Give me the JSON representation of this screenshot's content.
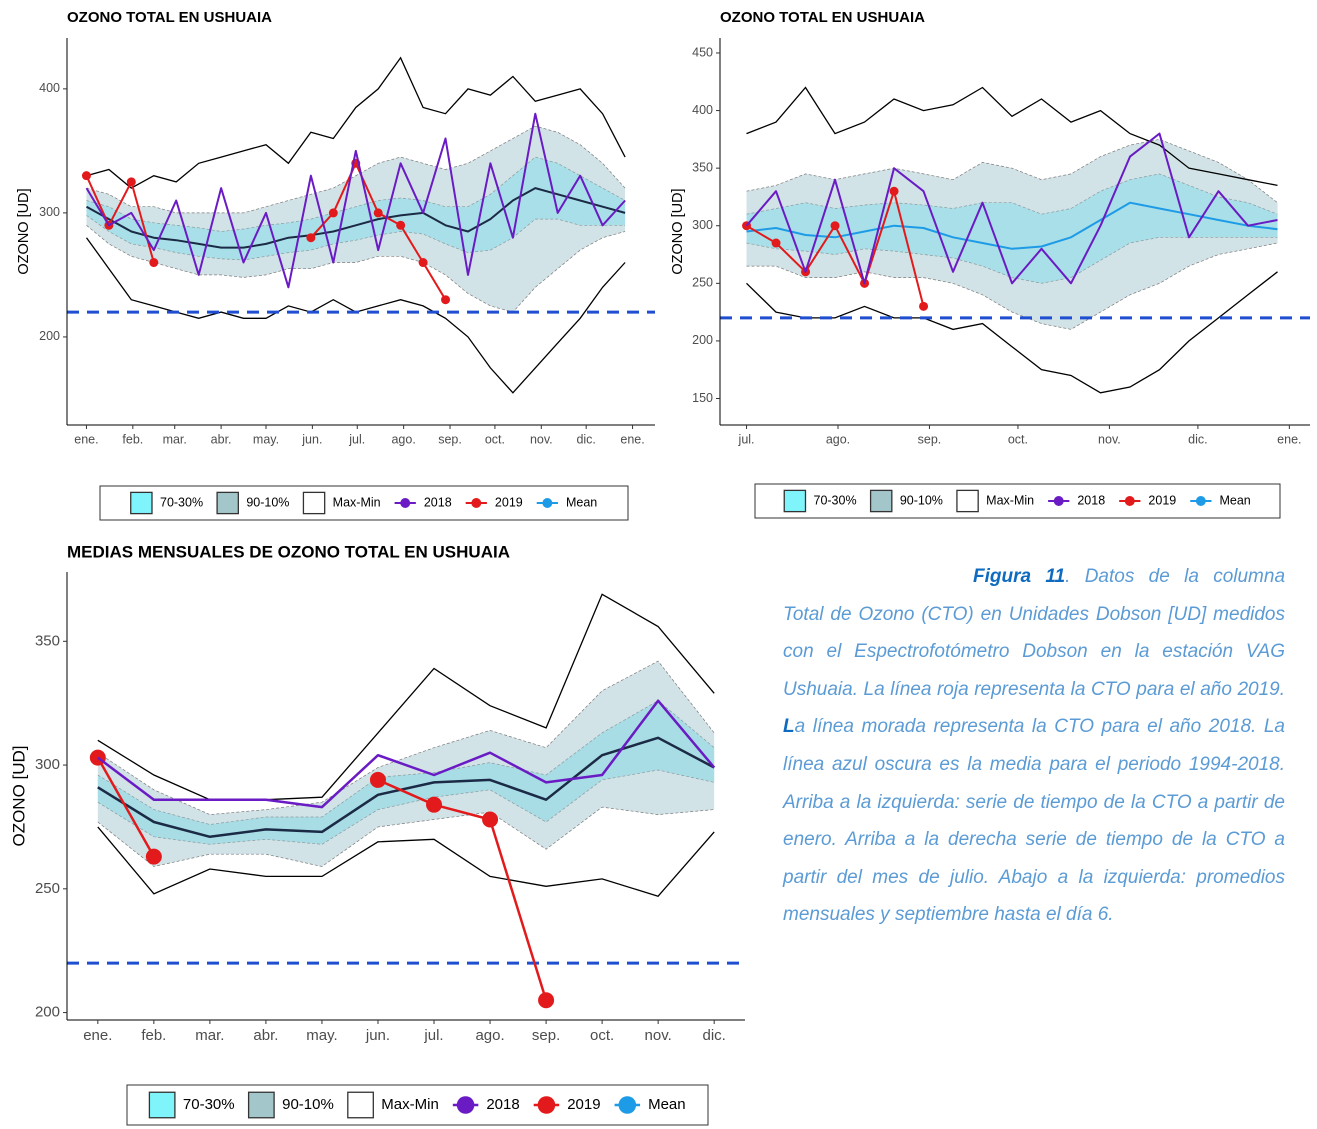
{
  "chart_data": [
    {
      "type": "line",
      "title": "OZONO TOTAL EN USHUAIA",
      "ylabel": "OZONO [UD]",
      "x": [
        0,
        15,
        30,
        45,
        60,
        75,
        90,
        105,
        120,
        135,
        150,
        165,
        180,
        195,
        210,
        225,
        240,
        255,
        270,
        285,
        300,
        315,
        330,
        345,
        360
      ],
      "xlim": [
        -13,
        380
      ],
      "xticks": [
        {
          "value": 0,
          "label": "ene."
        },
        {
          "value": 31,
          "label": "feb."
        },
        {
          "value": 59,
          "label": "mar."
        },
        {
          "value": 90,
          "label": "abr."
        },
        {
          "value": 120,
          "label": "may."
        },
        {
          "value": 151,
          "label": "jun."
        },
        {
          "value": 181,
          "label": "jul."
        },
        {
          "value": 212,
          "label": "ago."
        },
        {
          "value": 243,
          "label": "sep."
        },
        {
          "value": 273,
          "label": "oct."
        },
        {
          "value": 304,
          "label": "nov."
        },
        {
          "value": 334,
          "label": "dic."
        },
        {
          "value": 365,
          "label": "ene."
        }
      ],
      "ylim": [
        129,
        441
      ],
      "yticks": [
        200,
        300,
        400
      ],
      "threshold": 220,
      "threshold_color": "#1f4fd0",
      "bands": [
        {
          "name": "70-30%",
          "color": "#a9dfe8",
          "legend_color": "#80f4fb",
          "edge_color": "#8a9a9c",
          "upper": [
            310,
            305,
            295,
            292,
            290,
            288,
            285,
            287,
            290,
            292,
            295,
            300,
            305,
            310,
            312,
            310,
            305,
            305,
            315,
            330,
            345,
            340,
            330,
            320,
            310
          ],
          "lower": [
            298,
            285,
            275,
            272,
            268,
            265,
            263,
            262,
            265,
            268,
            270,
            275,
            278,
            282,
            285,
            283,
            275,
            268,
            270,
            280,
            295,
            295,
            290,
            290,
            290
          ]
        },
        {
          "name": "90-10%",
          "color": "#d2e3e8",
          "legend_color": "#a3c6ca",
          "edge_color": "#7a7a7a",
          "upper": [
            320,
            315,
            305,
            305,
            300,
            300,
            300,
            300,
            305,
            310,
            315,
            320,
            330,
            340,
            345,
            340,
            335,
            340,
            350,
            360,
            370,
            365,
            355,
            340,
            320
          ],
          "lower": [
            290,
            275,
            265,
            260,
            255,
            250,
            250,
            248,
            250,
            255,
            255,
            260,
            260,
            265,
            265,
            260,
            250,
            235,
            225,
            220,
            240,
            255,
            270,
            280,
            285
          ]
        },
        {
          "name": "Max-Min",
          "color": "none",
          "legend_color": "#ffffff",
          "edge_color": "#000000",
          "upper": [
            330,
            335,
            320,
            330,
            325,
            340,
            345,
            350,
            355,
            340,
            365,
            360,
            385,
            400,
            425,
            385,
            380,
            400,
            395,
            410,
            390,
            395,
            400,
            380,
            345
          ],
          "lower": [
            280,
            255,
            230,
            225,
            220,
            215,
            220,
            215,
            215,
            225,
            220,
            230,
            220,
            225,
            230,
            225,
            215,
            200,
            175,
            155,
            175,
            195,
            215,
            240,
            260
          ]
        }
      ],
      "series": [
        {
          "name": "2018",
          "color": "#6a1bc4",
          "values": [
            320,
            290,
            300,
            270,
            310,
            250,
            320,
            260,
            300,
            240,
            330,
            260,
            350,
            270,
            340,
            300,
            360,
            250,
            340,
            280,
            380,
            300,
            330,
            290,
            310
          ]
        },
        {
          "name": "2019",
          "color": "#e31a1c",
          "markers": true,
          "values": [
            330,
            290,
            325,
            260,
            null,
            null,
            null,
            null,
            null,
            null,
            280,
            300,
            340,
            300,
            290,
            260,
            230,
            null,
            null,
            null,
            null,
            null,
            null,
            null,
            null
          ]
        },
        {
          "name": "Mean",
          "color": "#1b2a45",
          "legend_color": "#1e9be6",
          "values": [
            305,
            295,
            285,
            280,
            278,
            275,
            272,
            272,
            275,
            280,
            282,
            285,
            290,
            295,
            298,
            300,
            290,
            285,
            295,
            310,
            320,
            315,
            310,
            305,
            300
          ]
        }
      ]
    },
    {
      "type": "line",
      "title": "OZONO TOTAL EN USHUAIA",
      "ylabel": "OZONO [UD]",
      "x": [
        0,
        10,
        20,
        30,
        40,
        50,
        60,
        70,
        80,
        90,
        100,
        110,
        120,
        130,
        140,
        150,
        160,
        170,
        180
      ],
      "xlim": [
        -9,
        191
      ],
      "xticks": [
        {
          "value": 0,
          "label": "jul."
        },
        {
          "value": 31,
          "label": "ago."
        },
        {
          "value": 62,
          "label": "sep."
        },
        {
          "value": 92,
          "label": "oct."
        },
        {
          "value": 123,
          "label": "nov."
        },
        {
          "value": 153,
          "label": "dic."
        },
        {
          "value": 184,
          "label": "ene."
        }
      ],
      "ylim": [
        127,
        463
      ],
      "yticks": [
        150,
        200,
        250,
        300,
        350,
        400,
        450
      ],
      "threshold": 220,
      "threshold_color": "#1f4fd0",
      "bands": [
        {
          "name": "70-30%",
          "color": "#a9dfe8",
          "legend_color": "#80f4fb",
          "edge_color": "#8a9a9c",
          "upper": [
            310,
            315,
            320,
            315,
            318,
            320,
            318,
            315,
            320,
            320,
            310,
            315,
            330,
            340,
            345,
            335,
            325,
            320,
            310
          ],
          "lower": [
            285,
            280,
            278,
            275,
            280,
            278,
            275,
            272,
            265,
            255,
            250,
            255,
            270,
            285,
            290,
            290,
            290,
            290,
            290
          ]
        },
        {
          "name": "90-10%",
          "color": "#d2e3e8",
          "legend_color": "#a3c6ca",
          "edge_color": "#7a7a7a",
          "upper": [
            330,
            335,
            345,
            340,
            345,
            350,
            345,
            340,
            355,
            350,
            340,
            345,
            360,
            370,
            375,
            365,
            355,
            340,
            320
          ],
          "lower": [
            265,
            265,
            255,
            255,
            260,
            255,
            255,
            250,
            240,
            225,
            215,
            210,
            225,
            240,
            250,
            265,
            275,
            280,
            285
          ]
        },
        {
          "name": "Max-Min",
          "color": "none",
          "legend_color": "#ffffff",
          "edge_color": "#000000",
          "upper": [
            380,
            390,
            420,
            380,
            390,
            410,
            400,
            405,
            420,
            395,
            410,
            390,
            400,
            380,
            370,
            350,
            345,
            340,
            335
          ],
          "lower": [
            250,
            225,
            220,
            220,
            230,
            220,
            220,
            210,
            215,
            195,
            175,
            170,
            155,
            160,
            175,
            200,
            220,
            240,
            260
          ]
        }
      ],
      "series": [
        {
          "name": "2018",
          "color": "#6a1bc4",
          "values": [
            300,
            330,
            260,
            340,
            250,
            350,
            330,
            260,
            320,
            250,
            280,
            250,
            300,
            360,
            380,
            290,
            330,
            300,
            305
          ]
        },
        {
          "name": "2019",
          "color": "#e31a1c",
          "markers": true,
          "values": [
            300,
            285,
            260,
            300,
            250,
            330,
            230,
            null,
            null,
            null,
            null,
            null,
            null,
            null,
            null,
            null,
            null,
            null,
            null
          ]
        },
        {
          "name": "Mean",
          "color": "#1e9be6",
          "values": [
            295,
            298,
            292,
            290,
            295,
            300,
            298,
            290,
            285,
            280,
            282,
            290,
            305,
            320,
            315,
            310,
            305,
            300,
            297
          ]
        }
      ]
    },
    {
      "type": "line",
      "title": "MEDIAS MENSUALES DE OZONO TOTAL EN USHUAIA",
      "ylabel": "OZONO [UD]",
      "categories": [
        "ene.",
        "feb.",
        "mar.",
        "abr.",
        "may.",
        "jun.",
        "jul.",
        "ago.",
        "sep.",
        "oct.",
        "nov.",
        "dic."
      ],
      "ylim": [
        197,
        378
      ],
      "yticks": [
        200,
        250,
        300,
        350
      ],
      "threshold": 220,
      "threshold_color": "#1f4fd0",
      "bands": [
        {
          "name": "70-30%",
          "color": "#a9dde6",
          "legend_color": "#80f4fb",
          "edge_color": "#8a9a9c",
          "upper": [
            296,
            282,
            276,
            279,
            279,
            295,
            297,
            301,
            296,
            313,
            326,
            307
          ],
          "lower": [
            285,
            271,
            268,
            270,
            268,
            282,
            287,
            290,
            277,
            294,
            298,
            293
          ]
        },
        {
          "name": "90-10%",
          "color": "#d2e3e8",
          "legend_color": "#a3c6ca",
          "edge_color": "#7a7a7a",
          "upper": [
            305,
            290,
            280,
            282,
            285,
            299,
            307,
            314,
            307,
            330,
            342,
            313
          ],
          "lower": [
            277,
            259,
            264,
            264,
            259,
            275,
            278,
            281,
            266,
            283,
            280,
            282
          ]
        },
        {
          "name": "Max-Min",
          "color": "none",
          "legend_color": "#ffffff",
          "edge_color": "#000000",
          "upper": [
            310,
            296,
            286,
            286,
            287,
            313,
            339,
            324,
            315,
            369,
            356,
            329
          ],
          "lower": [
            275,
            248,
            258,
            255,
            255,
            269,
            270,
            255,
            251,
            254,
            247,
            273
          ]
        }
      ],
      "series": [
        {
          "name": "2018",
          "color": "#6a1bc4",
          "values": [
            303,
            286,
            286,
            286,
            283,
            304,
            296,
            305,
            293,
            296,
            326,
            299
          ]
        },
        {
          "name": "2019",
          "color": "#e31a1c",
          "markers": true,
          "values": [
            303,
            263,
            null,
            null,
            null,
            294,
            284,
            278,
            205,
            null,
            null,
            null
          ]
        },
        {
          "name": "Mean",
          "color": "#1b2a45",
          "legend_color": "#1e9be6",
          "values": [
            291,
            277,
            271,
            274,
            273,
            288,
            293,
            294,
            286,
            304,
            311,
            299
          ]
        }
      ]
    }
  ],
  "caption": {
    "label": "Figura 11",
    "text": [
      ". Datos de la columna Total de Ozono (CTO) en Unidades Dobson [UD] medidos con el Espectrofotómetro Dobson en la estación VAG Ushuaia. La línea roja representa la CTO para el año 2019. ",
      "L",
      "a línea morada representa la CTO para el año 2018. La línea azul oscura es la media para el periodo 1994-2018. Arriba a la izquierda: serie de tiempo de la CTO a partir de enero. Arriba a la derecha serie de tiempo de la CTO a partir del mes de julio. Abajo a la izquierda: promedios mensuales y septiembre hasta el día 6."
    ]
  }
}
